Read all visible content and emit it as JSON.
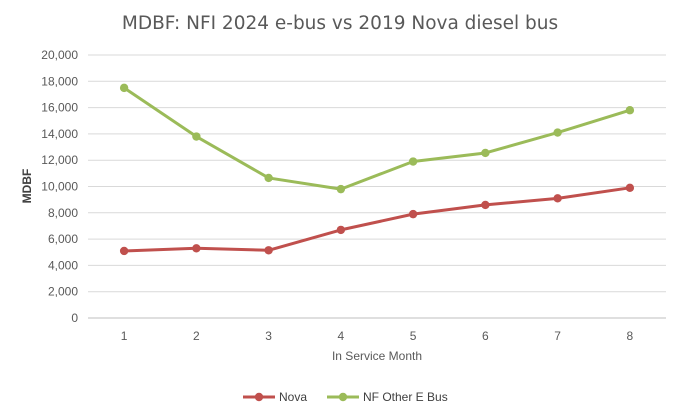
{
  "chart_data": {
    "type": "line",
    "title": "MDBF: NFI 2024 e-bus vs 2019 Nova diesel bus",
    "xlabel": "In Service Month",
    "ylabel": "MDBF",
    "categories": [
      "1",
      "2",
      "3",
      "4",
      "5",
      "6",
      "7",
      "8"
    ],
    "ylim": [
      0,
      20000
    ],
    "yticks": [
      0,
      2000,
      4000,
      6000,
      8000,
      10000,
      12000,
      14000,
      16000,
      18000,
      20000
    ],
    "ytick_labels": [
      "0",
      "2,000",
      "4,000",
      "6,000",
      "8,000",
      "10,000",
      "12,000",
      "14,000",
      "16,000",
      "18,000",
      "20,000"
    ],
    "grid": true,
    "legend": "bottom",
    "series": [
      {
        "name": "Nova",
        "color": "#C0504D",
        "values": [
          5100,
          5300,
          5150,
          6700,
          7900,
          8600,
          9100,
          9900
        ]
      },
      {
        "name": "NF Other E Bus",
        "color": "#9BBB59",
        "values": [
          17500,
          13800,
          10650,
          9800,
          11900,
          12550,
          14100,
          15800
        ]
      }
    ]
  }
}
